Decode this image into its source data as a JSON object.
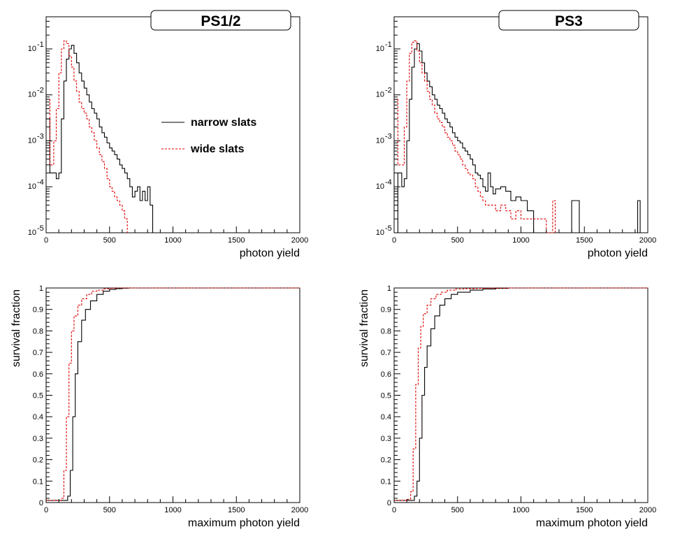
{
  "colors": {
    "narrow": "#000000",
    "wide": "#dd0000",
    "frame": "#000000",
    "background": "#ffffff"
  },
  "chart_data": [
    {
      "id": "ps12-yield",
      "type": "line",
      "title": "PS1/2",
      "xlabel": "photon yield",
      "ylabel": "",
      "xlim": [
        0,
        2000
      ],
      "ylim": [
        1e-05,
        0.5
      ],
      "yscale": "log",
      "x_ticks": [
        0,
        500,
        1000,
        1500,
        2000
      ],
      "y_ticks": [
        {
          "value": 1e-05,
          "mant": "10",
          "exp": "-5"
        },
        {
          "value": 0.0001,
          "mant": "10",
          "exp": "-4"
        },
        {
          "value": 0.001,
          "mant": "10",
          "exp": "-3"
        },
        {
          "value": 0.01,
          "mant": "10",
          "exp": "-2"
        },
        {
          "value": 0.1,
          "mant": "10",
          "exp": "-1"
        }
      ],
      "legend": {
        "placement": "center-right",
        "entries": [
          "narrow slats",
          "wide slats"
        ]
      },
      "series": [
        {
          "name": "narrow slats",
          "style": "solid",
          "color": "#000000",
          "x": [
            0,
            30,
            60,
            80,
            100,
            120,
            140,
            160,
            180,
            200,
            220,
            240,
            260,
            280,
            300,
            320,
            340,
            360,
            380,
            400,
            420,
            440,
            460,
            480,
            500,
            520,
            540,
            560,
            580,
            600,
            620,
            640,
            660,
            680,
            700,
            720,
            740,
            760,
            780,
            800,
            820,
            840
          ],
          "y": [
            0.003,
            0.0002,
            0.0002,
            0.00015,
            0.0002,
            0.003,
            0.02,
            0.06,
            0.1,
            0.12,
            0.08,
            0.05,
            0.03,
            0.02,
            0.014,
            0.01,
            0.007,
            0.005,
            0.004,
            0.003,
            0.002,
            0.0015,
            0.0012,
            0.0009,
            0.0007,
            0.0006,
            0.0005,
            0.0004,
            0.0003,
            0.00025,
            0.0002,
            0.00015,
            0.0001,
            6e-05,
            8e-05,
            0.0001,
            5e-05,
            8e-05,
            5e-05,
            0.0001,
            4e-05,
            1e-05
          ]
        },
        {
          "name": "wide slats",
          "style": "dashed",
          "color": "#dd0000",
          "x": [
            0,
            30,
            60,
            80,
            100,
            120,
            140,
            160,
            180,
            200,
            220,
            240,
            260,
            280,
            300,
            320,
            340,
            360,
            380,
            400,
            420,
            440,
            460,
            480,
            500,
            520,
            540,
            560,
            580,
            600,
            620,
            640
          ],
          "y": [
            0.008,
            0.0003,
            0.001,
            0.005,
            0.03,
            0.1,
            0.15,
            0.13,
            0.07,
            0.04,
            0.02,
            0.012,
            0.007,
            0.005,
            0.004,
            0.003,
            0.002,
            0.0015,
            0.001,
            0.0007,
            0.0005,
            0.00035,
            0.00025,
            0.00015,
            0.0001,
            8e-05,
            6e-05,
            5e-05,
            4e-05,
            3e-05,
            2e-05,
            1e-05
          ]
        }
      ]
    },
    {
      "id": "ps3-yield",
      "type": "line",
      "title": "PS3",
      "xlabel": "photon yield",
      "ylabel": "",
      "xlim": [
        0,
        2000
      ],
      "ylim": [
        1e-05,
        0.5
      ],
      "yscale": "log",
      "x_ticks": [
        0,
        500,
        1000,
        1500,
        2000
      ],
      "y_ticks": [
        {
          "value": 1e-05,
          "mant": "10",
          "exp": "-5"
        },
        {
          "value": 0.0001,
          "mant": "10",
          "exp": "-4"
        },
        {
          "value": 0.001,
          "mant": "10",
          "exp": "-3"
        },
        {
          "value": 0.01,
          "mant": "10",
          "exp": "-2"
        },
        {
          "value": 0.1,
          "mant": "10",
          "exp": "-1"
        }
      ],
      "series": [
        {
          "name": "narrow slats",
          "style": "solid",
          "color": "#000000",
          "x": [
            0,
            30,
            60,
            80,
            100,
            120,
            140,
            160,
            180,
            200,
            220,
            240,
            260,
            280,
            300,
            320,
            340,
            360,
            380,
            400,
            420,
            440,
            460,
            480,
            500,
            520,
            540,
            560,
            580,
            600,
            620,
            640,
            660,
            680,
            700,
            720,
            740,
            760,
            780,
            800,
            840,
            880,
            920,
            960,
            1000,
            1050,
            1100,
            1400,
            1460,
            1920,
            1940
          ],
          "y": [
            1e-05,
            0.0002,
            0.0001,
            0.00015,
            0.001,
            0.008,
            0.04,
            0.1,
            0.13,
            0.09,
            0.05,
            0.03,
            0.02,
            0.015,
            0.01,
            0.008,
            0.006,
            0.005,
            0.004,
            0.003,
            0.0025,
            0.002,
            0.0015,
            0.0012,
            0.001,
            0.0009,
            0.0007,
            0.0006,
            0.0005,
            0.0004,
            0.0003,
            0.0002,
            0.00018,
            0.00015,
            0.0001,
            8e-05,
            0.0002,
            0.0001,
            7e-05,
            9e-05,
            0.0001,
            8e-05,
            5e-05,
            6e-05,
            5e-05,
            3e-05,
            1e-05,
            5e-05,
            1e-05,
            5e-05,
            1e-05
          ]
        },
        {
          "name": "wide slats",
          "style": "dashed",
          "color": "#dd0000",
          "x": [
            0,
            30,
            60,
            80,
            100,
            120,
            140,
            160,
            180,
            200,
            220,
            240,
            260,
            280,
            300,
            320,
            340,
            360,
            380,
            400,
            420,
            440,
            460,
            480,
            500,
            520,
            540,
            560,
            580,
            600,
            620,
            640,
            660,
            680,
            700,
            720,
            760,
            800,
            840,
            880,
            920,
            960,
            1000,
            1100,
            1200,
            1250,
            1270
          ],
          "y": [
            0.008,
            0.0003,
            0.0003,
            0.002,
            0.02,
            0.08,
            0.14,
            0.15,
            0.09,
            0.05,
            0.03,
            0.02,
            0.012,
            0.008,
            0.006,
            0.004,
            0.003,
            0.0025,
            0.002,
            0.0015,
            0.0012,
            0.001,
            0.0008,
            0.0006,
            0.0005,
            0.0004,
            0.0003,
            0.00025,
            0.0002,
            0.00018,
            0.00015,
            0.0001,
            8e-05,
            6e-05,
            5e-05,
            4e-05,
            4e-05,
            3e-05,
            4e-05,
            3e-05,
            2e-05,
            3e-05,
            2e-05,
            2e-05,
            1e-05,
            5e-05,
            1e-05
          ]
        }
      ]
    },
    {
      "id": "ps12-survival",
      "type": "line",
      "title": "",
      "xlabel": "maximum photon yield",
      "ylabel": "survival fraction",
      "xlim": [
        0,
        2000
      ],
      "ylim": [
        0,
        1
      ],
      "yscale": "linear",
      "x_ticks": [
        0,
        500,
        1000,
        1500,
        2000
      ],
      "y_ticks": [
        0,
        0.1,
        0.2,
        0.3,
        0.4,
        0.5,
        0.6,
        0.7,
        0.8,
        0.9,
        1
      ],
      "series": [
        {
          "name": "narrow slats",
          "style": "solid",
          "color": "#000000",
          "x": [
            0,
            150,
            170,
            190,
            210,
            230,
            250,
            280,
            310,
            350,
            400,
            450,
            500,
            550,
            600,
            650,
            2000
          ],
          "y": [
            0.01,
            0.01,
            0.03,
            0.15,
            0.4,
            0.6,
            0.75,
            0.85,
            0.9,
            0.94,
            0.97,
            0.985,
            0.993,
            0.997,
            0.999,
            1.0,
            1.0
          ]
        },
        {
          "name": "wide slats",
          "style": "dashed",
          "color": "#dd0000",
          "x": [
            0,
            120,
            140,
            160,
            180,
            200,
            220,
            250,
            280,
            320,
            360,
            400,
            450,
            500,
            550,
            600,
            2000
          ],
          "y": [
            0.01,
            0.02,
            0.15,
            0.4,
            0.65,
            0.8,
            0.87,
            0.92,
            0.95,
            0.97,
            0.985,
            0.99,
            0.996,
            0.999,
            1.0,
            1.0,
            1.0
          ]
        }
      ]
    },
    {
      "id": "ps3-survival",
      "type": "line",
      "title": "",
      "xlabel": "maximum photon yield",
      "ylabel": "survival fraction",
      "xlim": [
        0,
        2000
      ],
      "ylim": [
        0,
        1
      ],
      "yscale": "linear",
      "x_ticks": [
        0,
        500,
        1000,
        1500,
        2000
      ],
      "y_ticks": [
        0,
        0.1,
        0.2,
        0.3,
        0.4,
        0.5,
        0.6,
        0.7,
        0.8,
        0.9,
        1
      ],
      "series": [
        {
          "name": "narrow slats",
          "style": "solid",
          "color": "#000000",
          "x": [
            0,
            130,
            160,
            180,
            200,
            220,
            240,
            260,
            290,
            320,
            360,
            400,
            450,
            500,
            600,
            700,
            800,
            900,
            2000
          ],
          "y": [
            0.01,
            0.01,
            0.03,
            0.1,
            0.3,
            0.5,
            0.63,
            0.73,
            0.81,
            0.87,
            0.92,
            0.95,
            0.97,
            0.98,
            0.99,
            0.995,
            0.998,
            1.0,
            1.0
          ]
        },
        {
          "name": "wide slats",
          "style": "dashed",
          "color": "#dd0000",
          "x": [
            0,
            100,
            130,
            150,
            170,
            190,
            210,
            230,
            260,
            290,
            330,
            370,
            420,
            480,
            550,
            650,
            750,
            900,
            2000
          ],
          "y": [
            0.01,
            0.015,
            0.05,
            0.25,
            0.55,
            0.72,
            0.82,
            0.88,
            0.92,
            0.95,
            0.97,
            0.98,
            0.99,
            0.995,
            0.997,
            0.998,
            0.999,
            1.0,
            1.0
          ]
        }
      ]
    }
  ]
}
